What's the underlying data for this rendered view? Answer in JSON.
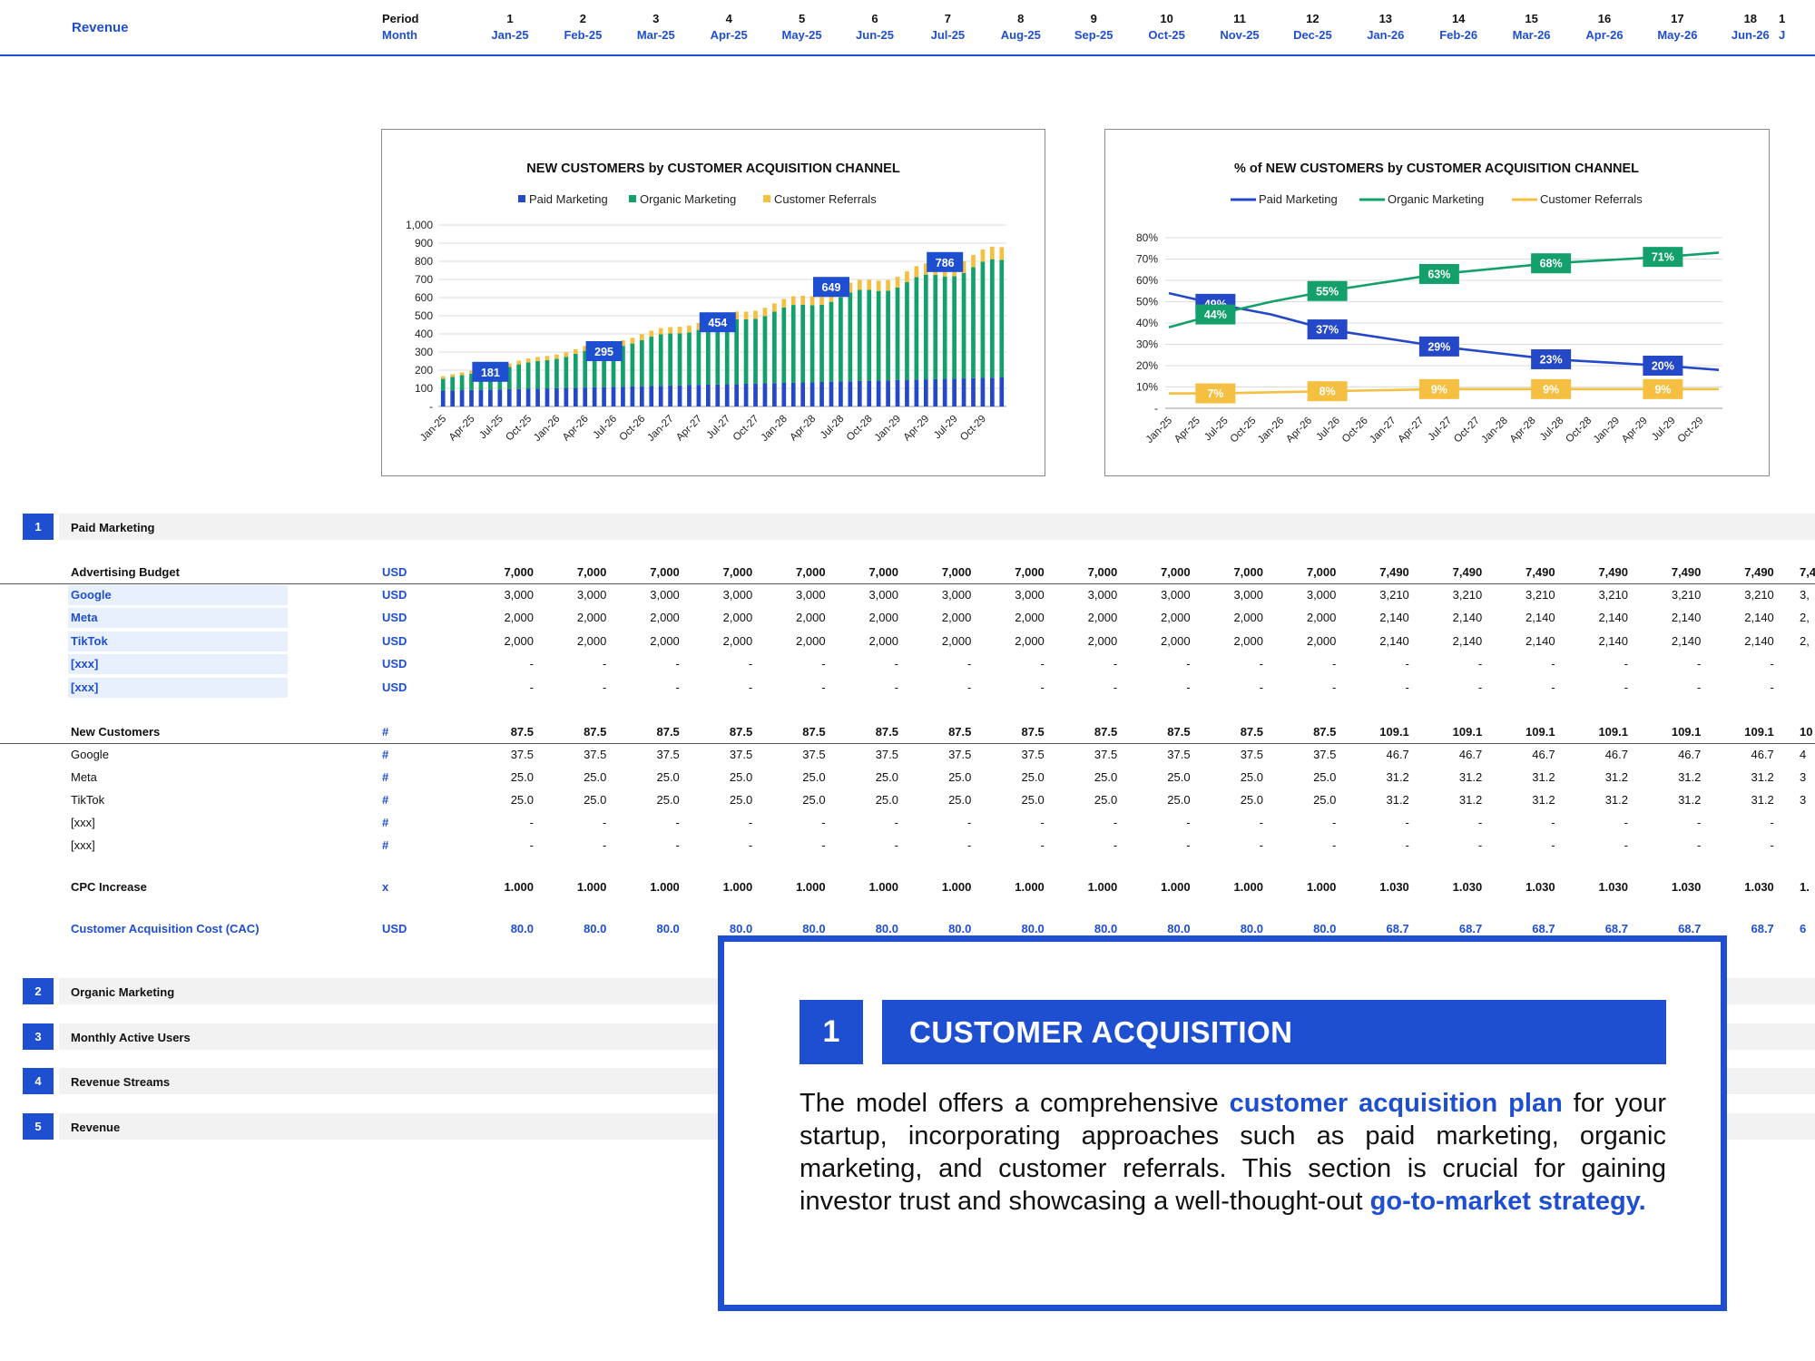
{
  "header": {
    "title": "Revenue",
    "period_label": "Period",
    "month_label": "Month",
    "periods": [
      "1",
      "2",
      "3",
      "4",
      "5",
      "6",
      "7",
      "8",
      "9",
      "10",
      "11",
      "12",
      "13",
      "14",
      "15",
      "16",
      "17",
      "18"
    ],
    "months": [
      "Jan-25",
      "Feb-25",
      "Mar-25",
      "Apr-25",
      "May-25",
      "Jun-25",
      "Jul-25",
      "Aug-25",
      "Sep-25",
      "Oct-25",
      "Nov-25",
      "Dec-25",
      "Jan-26",
      "Feb-26",
      "Mar-26",
      "Apr-26",
      "May-26",
      "Jun-26"
    ],
    "overflow_num": "1",
    "overflow_month": "J"
  },
  "colors": {
    "accent": "#1f4fd1",
    "paid": "#2448c8",
    "organic": "#13a06b",
    "referrals": "#f5c042"
  },
  "chart_data": [
    {
      "type": "bar",
      "stacked": true,
      "title": "NEW CUSTOMERS by CUSTOMER ACQUISITION CHANNEL",
      "legend": [
        "Paid Marketing",
        "Organic Marketing",
        "Customer Referrals"
      ],
      "legend_position": "top",
      "ylim": [
        0,
        1000
      ],
      "yticks": [
        "-",
        "100",
        "200",
        "300",
        "400",
        "500",
        "600",
        "700",
        "800",
        "900",
        "1,000"
      ],
      "xticks": [
        "Jan-25",
        "Apr-25",
        "Jul-25",
        "Oct-25",
        "Jan-26",
        "Apr-26",
        "Jul-26",
        "Oct-26",
        "Jan-27",
        "Apr-27",
        "Jul-27",
        "Oct-27",
        "Jan-28",
        "Apr-28",
        "Jul-28",
        "Oct-28",
        "Jan-29",
        "Apr-29",
        "Jul-29",
        "Oct-29"
      ],
      "months": 60,
      "series": [
        {
          "name": "Paid Marketing",
          "start": 88,
          "end": 160
        },
        {
          "name": "Organic Marketing",
          "start": 65,
          "end": 640
        },
        {
          "name": "Customer Referrals",
          "start": 14,
          "end": 70
        }
      ],
      "annotations": [
        {
          "month": 5,
          "label": "181"
        },
        {
          "month": 17,
          "label": "295"
        },
        {
          "month": 29,
          "label": "454"
        },
        {
          "month": 41,
          "label": "649"
        },
        {
          "month": 53,
          "label": "786"
        }
      ]
    },
    {
      "type": "line",
      "title": "% of NEW CUSTOMERS by CUSTOMER ACQUISITION CHANNEL",
      "legend": [
        "Paid Marketing",
        "Organic Marketing",
        "Customer Referrals"
      ],
      "legend_position": "top",
      "ylim": [
        0,
        80
      ],
      "yticks": [
        "-",
        "10%",
        "20%",
        "30%",
        "40%",
        "50%",
        "60%",
        "70%",
        "80%"
      ],
      "xticks": [
        "Jan-25",
        "Apr-25",
        "Jul-25",
        "Oct-25",
        "Jan-26",
        "Apr-26",
        "Jul-26",
        "Oct-26",
        "Jan-27",
        "Apr-27",
        "Jul-27",
        "Oct-27",
        "Jan-28",
        "Apr-28",
        "Jul-28",
        "Oct-28",
        "Jan-29",
        "Apr-29",
        "Jul-29",
        "Oct-29"
      ],
      "series": [
        {
          "name": "Paid Marketing",
          "points": [
            [
              0,
              54
            ],
            [
              5,
              49
            ],
            [
              11,
              44
            ],
            [
              17,
              37
            ],
            [
              29,
              29
            ],
            [
              41,
              23
            ],
            [
              53,
              20
            ],
            [
              59,
              18
            ]
          ]
        },
        {
          "name": "Organic Marketing",
          "points": [
            [
              0,
              38
            ],
            [
              5,
              44
            ],
            [
              11,
              50
            ],
            [
              17,
              55
            ],
            [
              29,
              63
            ],
            [
              41,
              68
            ],
            [
              53,
              71
            ],
            [
              59,
              73
            ]
          ]
        },
        {
          "name": "Customer Referrals",
          "points": [
            [
              0,
              7
            ],
            [
              5,
              7
            ],
            [
              17,
              8
            ],
            [
              29,
              9
            ],
            [
              41,
              9
            ],
            [
              53,
              9
            ],
            [
              59,
              9
            ]
          ]
        }
      ],
      "annotations": [
        {
          "series": 0,
          "month": 5,
          "label": "49%"
        },
        {
          "series": 1,
          "month": 5,
          "label": "44%"
        },
        {
          "series": 1,
          "month": 17,
          "label": "55%"
        },
        {
          "series": 0,
          "month": 17,
          "label": "37%"
        },
        {
          "series": 1,
          "month": 29,
          "label": "63%"
        },
        {
          "series": 0,
          "month": 29,
          "label": "29%"
        },
        {
          "series": 1,
          "month": 41,
          "label": "68%"
        },
        {
          "series": 0,
          "month": 41,
          "label": "23%"
        },
        {
          "series": 1,
          "month": 53,
          "label": "71%"
        },
        {
          "series": 0,
          "month": 53,
          "label": "20%"
        },
        {
          "series": 2,
          "month": 5,
          "label": "7%"
        },
        {
          "series": 2,
          "month": 17,
          "label": "8%"
        },
        {
          "series": 2,
          "month": 29,
          "label": "9%"
        },
        {
          "series": 2,
          "month": 41,
          "label": "9%"
        },
        {
          "series": 2,
          "month": 53,
          "label": "9%"
        }
      ]
    }
  ],
  "sections": [
    {
      "num": "1",
      "label": "Paid Marketing"
    },
    {
      "num": "2",
      "label": "Organic Marketing"
    },
    {
      "num": "3",
      "label": "Monthly Active Users"
    },
    {
      "num": "4",
      "label": "Revenue Streams"
    },
    {
      "num": "5",
      "label": "Revenue"
    }
  ],
  "rows": [
    {
      "label": "Advertising Budget",
      "unit": "USD",
      "style": "bold uline",
      "values": [
        "7,000",
        "7,000",
        "7,000",
        "7,000",
        "7,000",
        "7,000",
        "7,000",
        "7,000",
        "7,000",
        "7,000",
        "7,000",
        "7,000",
        "7,490",
        "7,490",
        "7,490",
        "7,490",
        "7,490",
        "7,490"
      ],
      "overflow": "7,4"
    },
    {
      "label": "Google",
      "unit": "USD",
      "style": "blue-input",
      "values": [
        "3,000",
        "3,000",
        "3,000",
        "3,000",
        "3,000",
        "3,000",
        "3,000",
        "3,000",
        "3,000",
        "3,000",
        "3,000",
        "3,000",
        "3,210",
        "3,210",
        "3,210",
        "3,210",
        "3,210",
        "3,210"
      ],
      "overflow": "3,"
    },
    {
      "label": "Meta",
      "unit": "USD",
      "style": "blue-input",
      "values": [
        "2,000",
        "2,000",
        "2,000",
        "2,000",
        "2,000",
        "2,000",
        "2,000",
        "2,000",
        "2,000",
        "2,000",
        "2,000",
        "2,000",
        "2,140",
        "2,140",
        "2,140",
        "2,140",
        "2,140",
        "2,140"
      ],
      "overflow": "2,"
    },
    {
      "label": "TikTok",
      "unit": "USD",
      "style": "blue-input",
      "values": [
        "2,000",
        "2,000",
        "2,000",
        "2,000",
        "2,000",
        "2,000",
        "2,000",
        "2,000",
        "2,000",
        "2,000",
        "2,000",
        "2,000",
        "2,140",
        "2,140",
        "2,140",
        "2,140",
        "2,140",
        "2,140"
      ],
      "overflow": "2,"
    },
    {
      "label": "[xxx]",
      "unit": "USD",
      "style": "blue-input",
      "values": [
        "-",
        "-",
        "-",
        "-",
        "-",
        "-",
        "-",
        "-",
        "-",
        "-",
        "-",
        "-",
        "-",
        "-",
        "-",
        "-",
        "-",
        "-"
      ],
      "overflow": ""
    },
    {
      "label": "[xxx]",
      "unit": "USD",
      "style": "blue-input",
      "values": [
        "-",
        "-",
        "-",
        "-",
        "-",
        "-",
        "-",
        "-",
        "-",
        "-",
        "-",
        "-",
        "-",
        "-",
        "-",
        "-",
        "-",
        "-"
      ],
      "overflow": ""
    },
    {
      "label": "New Customers",
      "unit": "#",
      "style": "bold uline",
      "values": [
        "87.5",
        "87.5",
        "87.5",
        "87.5",
        "87.5",
        "87.5",
        "87.5",
        "87.5",
        "87.5",
        "87.5",
        "87.5",
        "87.5",
        "109.1",
        "109.1",
        "109.1",
        "109.1",
        "109.1",
        "109.1"
      ],
      "overflow": "10"
    },
    {
      "label": "Google",
      "unit": "#",
      "style": "plain",
      "values": [
        "37.5",
        "37.5",
        "37.5",
        "37.5",
        "37.5",
        "37.5",
        "37.5",
        "37.5",
        "37.5",
        "37.5",
        "37.5",
        "37.5",
        "46.7",
        "46.7",
        "46.7",
        "46.7",
        "46.7",
        "46.7"
      ],
      "overflow": "4"
    },
    {
      "label": "Meta",
      "unit": "#",
      "style": "plain",
      "values": [
        "25.0",
        "25.0",
        "25.0",
        "25.0",
        "25.0",
        "25.0",
        "25.0",
        "25.0",
        "25.0",
        "25.0",
        "25.0",
        "25.0",
        "31.2",
        "31.2",
        "31.2",
        "31.2",
        "31.2",
        "31.2"
      ],
      "overflow": "3"
    },
    {
      "label": "TikTok",
      "unit": "#",
      "style": "plain",
      "values": [
        "25.0",
        "25.0",
        "25.0",
        "25.0",
        "25.0",
        "25.0",
        "25.0",
        "25.0",
        "25.0",
        "25.0",
        "25.0",
        "25.0",
        "31.2",
        "31.2",
        "31.2",
        "31.2",
        "31.2",
        "31.2"
      ],
      "overflow": "3"
    },
    {
      "label": "[xxx]",
      "unit": "#",
      "style": "plain",
      "values": [
        "-",
        "-",
        "-",
        "-",
        "-",
        "-",
        "-",
        "-",
        "-",
        "-",
        "-",
        "-",
        "-",
        "-",
        "-",
        "-",
        "-",
        "-"
      ],
      "overflow": ""
    },
    {
      "label": "[xxx]",
      "unit": "#",
      "style": "plain",
      "values": [
        "-",
        "-",
        "-",
        "-",
        "-",
        "-",
        "-",
        "-",
        "-",
        "-",
        "-",
        "-",
        "-",
        "-",
        "-",
        "-",
        "-",
        "-"
      ],
      "overflow": ""
    },
    {
      "label": "CPC Increase",
      "unit": "x",
      "style": "bold",
      "values": [
        "1.000",
        "1.000",
        "1.000",
        "1.000",
        "1.000",
        "1.000",
        "1.000",
        "1.000",
        "1.000",
        "1.000",
        "1.000",
        "1.000",
        "1.030",
        "1.030",
        "1.030",
        "1.030",
        "1.030",
        "1.030"
      ],
      "overflow": "1."
    },
    {
      "label": "Customer Acquisition Cost (CAC)",
      "unit": "USD",
      "style": "blue",
      "values": [
        "80.0",
        "80.0",
        "80.0",
        "80.0",
        "80.0",
        "80.0",
        "80.0",
        "80.0",
        "80.0",
        "80.0",
        "80.0",
        "80.0",
        "68.7",
        "68.7",
        "68.7",
        "68.7",
        "68.7",
        "68.7"
      ],
      "overflow": "6"
    }
  ],
  "callout": {
    "num": "1",
    "title": "CUSTOMER ACQUISITION",
    "text_1": "The model offers a comprehensive ",
    "link_1": "customer acquisition plan",
    "text_2": " for your startup, incorporating approaches such as paid marketing, organic marketing, and customer referrals. This section is crucial for gaining investor trust and showcasing a well-thought-out ",
    "link_2": "go-to-market strategy."
  }
}
